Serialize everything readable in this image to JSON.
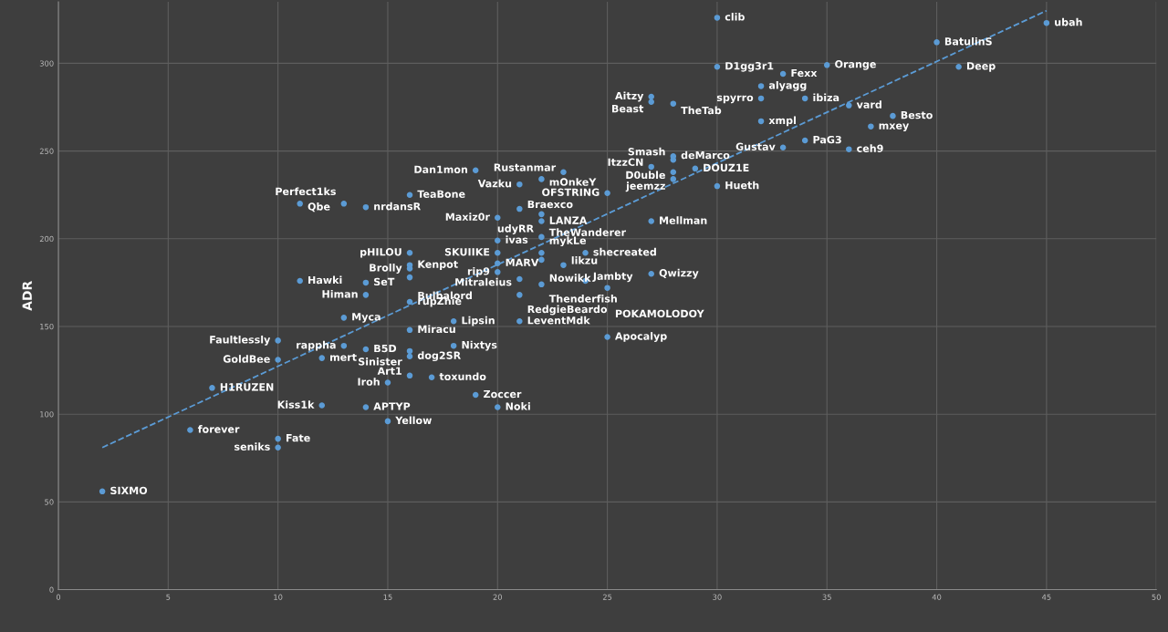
{
  "chart_data": {
    "type": "scatter",
    "ylabel": "ADR",
    "xlim": [
      0,
      50
    ],
    "ylim": [
      0,
      335
    ],
    "xticks": [
      0,
      5,
      10,
      15,
      20,
      25,
      30,
      35,
      40,
      45,
      50
    ],
    "yticks": [
      0,
      50,
      100,
      150,
      200,
      250,
      300
    ],
    "grid": true,
    "marker": "circle",
    "legend": false,
    "series": [
      {
        "color": "#5b9bd5",
        "x": [
          30,
          45,
          40,
          30,
          35,
          41,
          33,
          32,
          32,
          34,
          36,
          27,
          27,
          28,
          32,
          38,
          37,
          34,
          33,
          36,
          28,
          28,
          27,
          28,
          29,
          28,
          30,
          23,
          19,
          22,
          21,
          25,
          16,
          11,
          13,
          14,
          21,
          20,
          22,
          22,
          27,
          20,
          22,
          16,
          20,
          22,
          24,
          22,
          16,
          16,
          16,
          20,
          20,
          23,
          21,
          22,
          24,
          25,
          27,
          11,
          14,
          14,
          16,
          21,
          13,
          18,
          21,
          16,
          25,
          10,
          13,
          14,
          16,
          16,
          18,
          10,
          12,
          16,
          17,
          15,
          7,
          19,
          12,
          14,
          20,
          15,
          6,
          10,
          10,
          2
        ],
        "values": [
          326,
          323,
          312,
          298,
          299,
          298,
          294,
          287,
          280,
          280,
          276,
          281,
          278,
          277,
          267,
          270,
          264,
          256,
          252,
          251,
          247,
          245,
          241,
          238,
          240,
          234,
          230,
          238,
          239,
          234,
          231,
          226,
          225,
          220,
          220,
          218,
          217,
          212,
          214,
          210,
          210,
          199,
          201,
          192,
          192,
          192,
          192,
          188,
          185,
          183,
          178,
          186,
          181,
          185,
          177,
          174,
          176,
          172,
          180,
          176,
          175,
          168,
          164,
          168,
          155,
          153,
          153,
          148,
          144,
          142,
          139,
          137,
          136,
          133,
          139,
          131,
          132,
          122,
          121,
          118,
          115,
          111,
          105,
          104,
          104,
          96,
          91,
          86,
          81,
          56
        ]
      },
      {
        "type": "line",
        "line_style": "dashed",
        "marker": "none",
        "color": "#5b9bd5",
        "x": [
          2,
          45
        ],
        "values": [
          81,
          330
        ]
      }
    ],
    "annotations": [
      {
        "text": "clib",
        "x": 30,
        "y": 326
      },
      {
        "text": "ubah",
        "x": 45,
        "y": 323
      },
      {
        "text": "BatulinS",
        "x": 40,
        "y": 312
      },
      {
        "text": "D1gg3r1",
        "x": 30,
        "y": 298
      },
      {
        "text": "Orange",
        "x": 35,
        "y": 299
      },
      {
        "text": "Deep",
        "x": 41,
        "y": 298
      },
      {
        "text": "Fexx",
        "x": 33,
        "y": 294
      },
      {
        "text": "alyagg",
        "x": 32,
        "y": 287
      },
      {
        "text": "spyrro",
        "x": 32,
        "y": 280
      },
      {
        "text": "ibiza",
        "x": 34,
        "y": 280
      },
      {
        "text": "vard",
        "x": 36,
        "y": 276
      },
      {
        "text": "Aitzy",
        "x": 27,
        "y": 281
      },
      {
        "text": "Beast",
        "x": 27,
        "y": 278
      },
      {
        "text": "TheTab",
        "x": 28,
        "y": 277
      },
      {
        "text": "xmpl",
        "x": 32,
        "y": 267
      },
      {
        "text": "Besto",
        "x": 38,
        "y": 270
      },
      {
        "text": "mxey",
        "x": 37,
        "y": 264
      },
      {
        "text": "PaG3",
        "x": 34,
        "y": 256
      },
      {
        "text": "Gustav",
        "x": 33,
        "y": 252
      },
      {
        "text": "ceh9",
        "x": 36,
        "y": 251
      },
      {
        "text": "Smash",
        "x": 28,
        "y": 247
      },
      {
        "text": "deMarco",
        "x": 28,
        "y": 245
      },
      {
        "text": "ItzzCN",
        "x": 27,
        "y": 241
      },
      {
        "text": "D0uble",
        "x": 28,
        "y": 238
      },
      {
        "text": "DOUZ1E",
        "x": 29,
        "y": 240
      },
      {
        "text": "jeemzz",
        "x": 28,
        "y": 234
      },
      {
        "text": "Hueth",
        "x": 30,
        "y": 230
      },
      {
        "text": "Rustanmar",
        "x": 23,
        "y": 238
      },
      {
        "text": "Dan1mon",
        "x": 19,
        "y": 239
      },
      {
        "text": "mOnkeY",
        "x": 22,
        "y": 234
      },
      {
        "text": "Vazku",
        "x": 21,
        "y": 231
      },
      {
        "text": "OFSTRING",
        "x": 25,
        "y": 226
      },
      {
        "text": "TeaBone",
        "x": 16,
        "y": 225
      },
      {
        "text": "Qbe",
        "x": 11,
        "y": 220
      },
      {
        "text": "Perfect1ks",
        "x": 13,
        "y": 220
      },
      {
        "text": "nrdansR",
        "x": 14,
        "y": 218
      },
      {
        "text": "Braexco",
        "x": 21,
        "y": 217
      },
      {
        "text": "Maxiz0r",
        "x": 20,
        "y": 212
      },
      {
        "text": "udyRR",
        "x": 22,
        "y": 214
      },
      {
        "text": "LANZA",
        "x": 22,
        "y": 210
      },
      {
        "text": "Mellman",
        "x": 27,
        "y": 210
      },
      {
        "text": "ivas",
        "x": 20,
        "y": 199
      },
      {
        "text": "TheWanderer",
        "x": 22,
        "y": 201
      },
      {
        "text": "pHILOU",
        "x": 16,
        "y": 192
      },
      {
        "text": "SKUIIKE",
        "x": 20,
        "y": 192
      },
      {
        "text": "mykLe",
        "x": 22,
        "y": 192
      },
      {
        "text": "shecreated",
        "x": 24,
        "y": 192
      },
      {
        "text": "Nowikk",
        "x": 22,
        "y": 188
      },
      {
        "text": "Kenpot",
        "x": 16,
        "y": 185
      },
      {
        "text": "Brolly",
        "x": 16,
        "y": 183
      },
      {
        "text": "Bulbalord",
        "x": 16,
        "y": 178
      },
      {
        "text": "MARV",
        "x": 20,
        "y": 186
      },
      {
        "text": "rip9",
        "x": 20,
        "y": 181
      },
      {
        "text": "likzu",
        "x": 23,
        "y": 185
      },
      {
        "text": "Mitraleius",
        "x": 21,
        "y": 177
      },
      {
        "text": "Thenderfish",
        "x": 22,
        "y": 174
      },
      {
        "text": "Jambty",
        "x": 24,
        "y": 176
      },
      {
        "text": "POKAMOLODOY",
        "x": 25,
        "y": 172
      },
      {
        "text": "Qwizzy",
        "x": 27,
        "y": 180
      },
      {
        "text": "Hawki",
        "x": 11,
        "y": 176
      },
      {
        "text": "SeT",
        "x": 14,
        "y": 175
      },
      {
        "text": "Himan",
        "x": 14,
        "y": 168
      },
      {
        "text": "rupZhie",
        "x": 16,
        "y": 164
      },
      {
        "text": "RedgieBeardo",
        "x": 21,
        "y": 168
      },
      {
        "text": "Myca",
        "x": 13,
        "y": 155
      },
      {
        "text": "Lipsin",
        "x": 18,
        "y": 153
      },
      {
        "text": "LeventMdk",
        "x": 21,
        "y": 153
      },
      {
        "text": "Miracu",
        "x": 16,
        "y": 148
      },
      {
        "text": "Apocalyp",
        "x": 25,
        "y": 144
      },
      {
        "text": "Faultlessly",
        "x": 10,
        "y": 142
      },
      {
        "text": "rappha",
        "x": 13,
        "y": 139
      },
      {
        "text": "B5D",
        "x": 14,
        "y": 137
      },
      {
        "text": "Sinister",
        "x": 16,
        "y": 136
      },
      {
        "text": "dog2SR",
        "x": 16,
        "y": 133
      },
      {
        "text": "Nixtys",
        "x": 18,
        "y": 139
      },
      {
        "text": "GoldBee",
        "x": 10,
        "y": 131
      },
      {
        "text": "mert",
        "x": 12,
        "y": 132
      },
      {
        "text": "Art1",
        "x": 16,
        "y": 122
      },
      {
        "text": "toxundo",
        "x": 17,
        "y": 121
      },
      {
        "text": "Iroh",
        "x": 15,
        "y": 118
      },
      {
        "text": "H1RUZEN",
        "x": 7,
        "y": 115
      },
      {
        "text": "Zoccer",
        "x": 19,
        "y": 111
      },
      {
        "text": "Kiss1k",
        "x": 12,
        "y": 105
      },
      {
        "text": "APTYP",
        "x": 14,
        "y": 104
      },
      {
        "text": "Noki",
        "x": 20,
        "y": 104
      },
      {
        "text": "Yellow",
        "x": 15,
        "y": 96
      },
      {
        "text": "forever",
        "x": 6,
        "y": 91
      },
      {
        "text": "Fate",
        "x": 10,
        "y": 86
      },
      {
        "text": "seniks",
        "x": 10,
        "y": 81
      },
      {
        "text": "SIXMO",
        "x": 2,
        "y": 56
      }
    ]
  }
}
